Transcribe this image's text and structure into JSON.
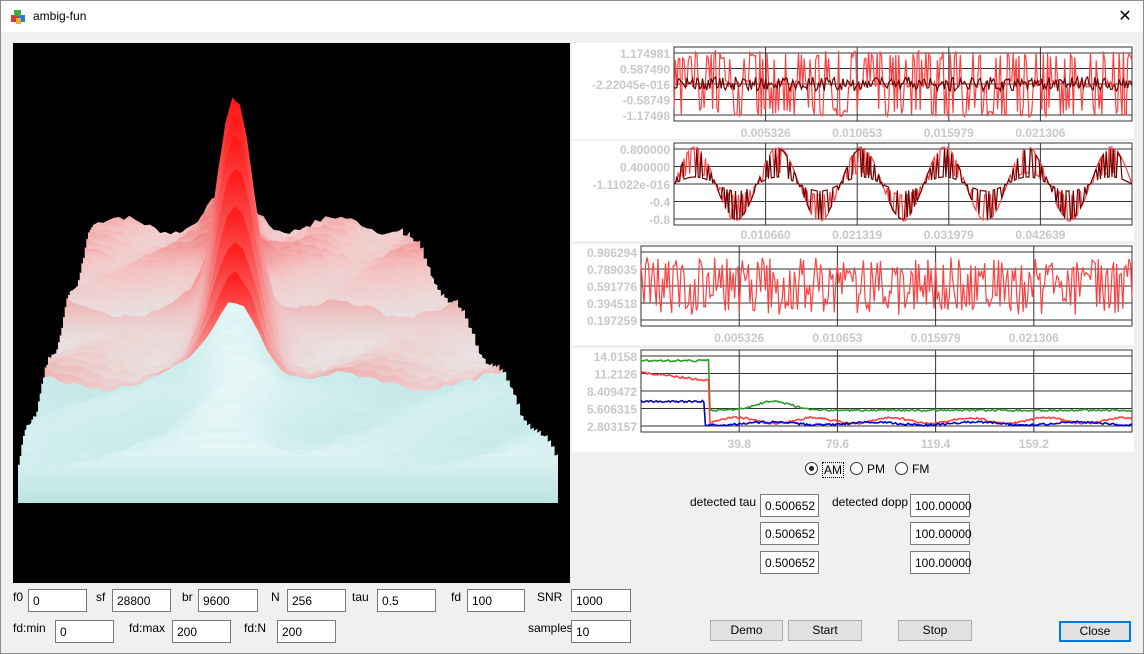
{
  "window": {
    "title": "ambig-fun",
    "close_glyph": "✕",
    "icon": "app-cube-icon"
  },
  "plot_colors": {
    "peak": "#ff1a1a",
    "base": "#d8f4f4",
    "background": "#000000"
  },
  "charts": [
    {
      "id": "signal-in",
      "series_colors": [
        "#ff4040",
        "#6b0000"
      ],
      "y_ticks": [
        "1.174981",
        "0.587490",
        "-2.22045e-016",
        "-0.58749",
        "-1.17498"
      ],
      "x_ticks": [
        "0.005326",
        "0.010653",
        "0.015979",
        "0.021306"
      ]
    },
    {
      "id": "signal-mod",
      "series_colors": [
        "#ff4040",
        "#6b0000"
      ],
      "y_ticks": [
        "0.800000",
        "0.400000",
        "-1.11022e-016",
        "-0.4",
        "-0.8"
      ],
      "x_ticks": [
        "0.010660",
        "0.021319",
        "0.031979",
        "0.042639"
      ]
    },
    {
      "id": "correlation",
      "series_colors": [
        "#ff4040"
      ],
      "y_ticks": [
        "0.986294",
        "0.789035",
        "0.591776",
        "0.394518",
        "0.197259"
      ],
      "x_ticks": [
        "0.005326",
        "0.010653",
        "0.015979",
        "0.021306"
      ]
    },
    {
      "id": "error",
      "series_colors": [
        "#2e9a2e",
        "#ff4040",
        "#0000cc"
      ],
      "y_ticks": [
        "14.0158",
        "11.2126",
        "8.409472",
        "5.606315",
        "2.803157"
      ],
      "x_ticks": [
        "39.8",
        "79.6",
        "119.4",
        "159.2"
      ]
    }
  ],
  "modulation": {
    "options": [
      "AM",
      "PM",
      "FM"
    ],
    "selected": "AM"
  },
  "params": {
    "f0": {
      "label": "f0",
      "value": "0"
    },
    "sf": {
      "label": "sf",
      "value": "28800"
    },
    "br": {
      "label": "br",
      "value": "9600"
    },
    "N": {
      "label": "N",
      "value": "256"
    },
    "tau": {
      "label": "tau",
      "value": "0.5"
    },
    "fd": {
      "label": "fd",
      "value": "100"
    },
    "snr": {
      "label": "SNR",
      "value": "1000"
    },
    "fdmin": {
      "label": "fd:min",
      "value": "0"
    },
    "fdmax": {
      "label": "fd:max",
      "value": "200"
    },
    "fdN": {
      "label": "fd:N",
      "value": "200"
    },
    "samples": {
      "label": "samples",
      "value": "10"
    }
  },
  "detected": {
    "tau_label": "detected tau",
    "dopp_label": "detected dopp",
    "tau": [
      "0.500652",
      "0.500652",
      "0.500652"
    ],
    "dopp": [
      "100.00000",
      "100.00000",
      "100.00000"
    ]
  },
  "buttons": {
    "demo": "Demo",
    "start": "Start",
    "stop": "Stop",
    "close": "Close"
  }
}
